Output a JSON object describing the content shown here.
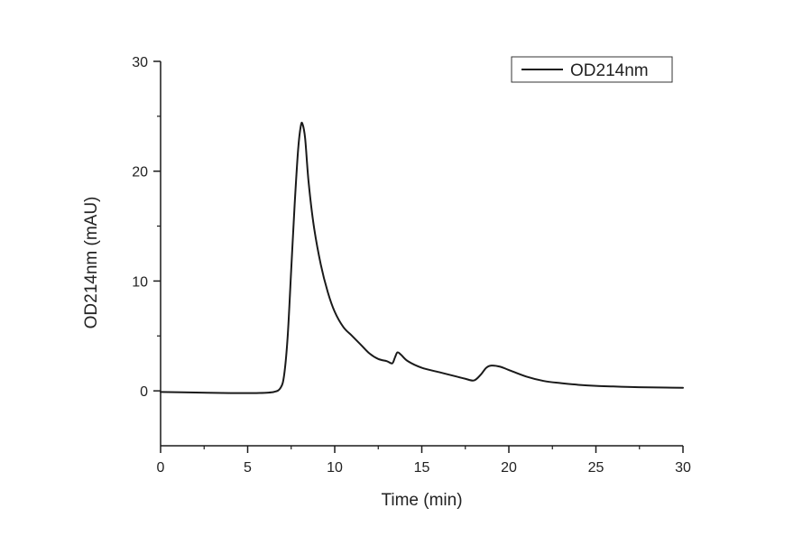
{
  "chart_data": {
    "type": "line",
    "xlabel": "Time (min)",
    "ylabel": "OD214nm (mAU)",
    "xlim": [
      0,
      30
    ],
    "ylim": [
      -5,
      30
    ],
    "x_ticks": [
      0,
      5,
      10,
      15,
      20,
      25,
      30
    ],
    "y_ticks": [
      0,
      10,
      20,
      30
    ],
    "grid": false,
    "legend_position": "top-right",
    "series": [
      {
        "name": "OD214nm",
        "color": "#1a1a1a",
        "points": [
          [
            0,
            -0.1
          ],
          [
            2,
            -0.15
          ],
          [
            4,
            -0.2
          ],
          [
            5.5,
            -0.2
          ],
          [
            6.5,
            -0.1
          ],
          [
            6.9,
            0.3
          ],
          [
            7.1,
            1.5
          ],
          [
            7.3,
            5
          ],
          [
            7.5,
            11
          ],
          [
            7.7,
            17
          ],
          [
            7.9,
            22
          ],
          [
            8.05,
            24.1
          ],
          [
            8.15,
            24.3
          ],
          [
            8.3,
            23
          ],
          [
            8.5,
            19
          ],
          [
            8.8,
            15
          ],
          [
            9.2,
            11.5
          ],
          [
            9.6,
            9
          ],
          [
            10,
            7.2
          ],
          [
            10.5,
            5.8
          ],
          [
            11,
            5
          ],
          [
            11.5,
            4.2
          ],
          [
            12,
            3.4
          ],
          [
            12.5,
            2.9
          ],
          [
            13,
            2.7
          ],
          [
            13.3,
            2.5
          ],
          [
            13.45,
            3.0
          ],
          [
            13.6,
            3.5
          ],
          [
            13.8,
            3.3
          ],
          [
            14.2,
            2.7
          ],
          [
            15,
            2.1
          ],
          [
            16,
            1.7
          ],
          [
            17,
            1.3
          ],
          [
            17.5,
            1.1
          ],
          [
            18,
            0.95
          ],
          [
            18.4,
            1.5
          ],
          [
            18.7,
            2.1
          ],
          [
            19,
            2.3
          ],
          [
            19.5,
            2.2
          ],
          [
            20,
            1.9
          ],
          [
            21,
            1.3
          ],
          [
            22,
            0.9
          ],
          [
            23,
            0.7
          ],
          [
            24,
            0.55
          ],
          [
            25,
            0.45
          ],
          [
            26,
            0.4
          ],
          [
            27,
            0.35
          ],
          [
            28,
            0.32
          ],
          [
            29,
            0.3
          ],
          [
            30,
            0.28
          ]
        ]
      }
    ]
  }
}
